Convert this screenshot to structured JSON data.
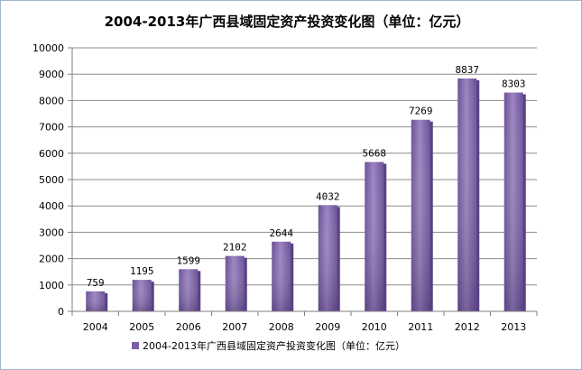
{
  "chart_data": {
    "type": "bar",
    "title": "2004-2013年广西县域固定资产投资变化图（单位：亿元）",
    "categories": [
      "2004",
      "2005",
      "2006",
      "2007",
      "2008",
      "2009",
      "2010",
      "2011",
      "2012",
      "2013"
    ],
    "series": [
      {
        "name": "2004-2013年广西县域固定资产投资变化图（单位：亿元）",
        "values": [
          759,
          1195,
          1599,
          2102,
          2644,
          4032,
          5668,
          7269,
          8837,
          8303
        ]
      }
    ],
    "ylim": [
      0,
      10000
    ],
    "yticks": [
      0,
      1000,
      2000,
      3000,
      4000,
      5000,
      6000,
      7000,
      8000,
      9000,
      10000
    ],
    "grid": true,
    "legend_position": "bottom",
    "colors": {
      "bar_light": "#9b84c0",
      "bar_mid": "#7b5fa8",
      "bar_dark": "#5a4183",
      "gridline": "#8c8c8c",
      "axis": "#7f7f7f"
    }
  }
}
